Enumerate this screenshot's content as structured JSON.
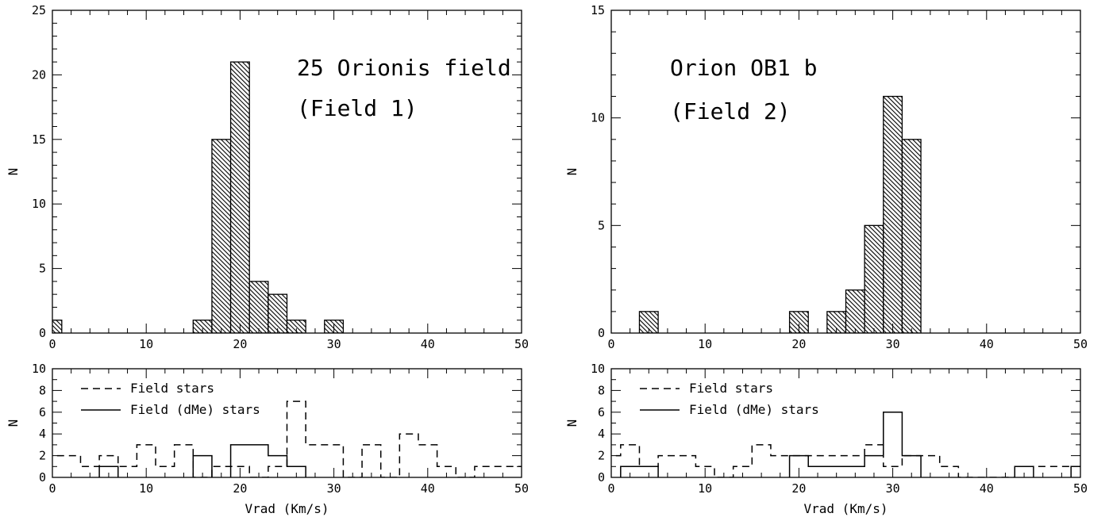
{
  "chart_data": [
    {
      "id": "top-left",
      "type": "bar",
      "bin_width": 2,
      "xlim": [
        0,
        50
      ],
      "ylim": [
        0,
        25
      ],
      "x_ticks": [
        0,
        10,
        20,
        30,
        40,
        50
      ],
      "y_ticks": [
        0,
        5,
        10,
        15,
        20,
        25
      ],
      "xlabel": "",
      "ylabel": "N",
      "annotations": [
        "25 Orionis field",
        "(Field 1)"
      ],
      "bins": [
        {
          "x": -1,
          "value": 1
        },
        {
          "x": 15,
          "value": 1
        },
        {
          "x": 17,
          "value": 15
        },
        {
          "x": 19,
          "value": 21
        },
        {
          "x": 21,
          "value": 4
        },
        {
          "x": 23,
          "value": 3
        },
        {
          "x": 25,
          "value": 1
        },
        {
          "x": 29,
          "value": 1
        }
      ]
    },
    {
      "id": "top-right",
      "type": "bar",
      "bin_width": 2,
      "xlim": [
        0,
        50
      ],
      "ylim": [
        0,
        15
      ],
      "x_ticks": [
        0,
        10,
        20,
        30,
        40,
        50
      ],
      "y_ticks": [
        0,
        5,
        10,
        15
      ],
      "xlabel": "",
      "ylabel": "N",
      "annotations": [
        "Orion OB1 b",
        "(Field 2)"
      ],
      "bins": [
        {
          "x": 3,
          "value": 1
        },
        {
          "x": 19,
          "value": 1
        },
        {
          "x": 23,
          "value": 1
        },
        {
          "x": 25,
          "value": 2
        },
        {
          "x": 27,
          "value": 5
        },
        {
          "x": 29,
          "value": 11
        },
        {
          "x": 31,
          "value": 9
        }
      ]
    },
    {
      "id": "bottom-left",
      "type": "line",
      "step": true,
      "bin_width": 2,
      "xlim": [
        0,
        50
      ],
      "ylim": [
        0,
        10
      ],
      "x_ticks": [
        0,
        10,
        20,
        30,
        40,
        50
      ],
      "y_ticks": [
        0,
        2,
        4,
        6,
        8,
        10
      ],
      "xlabel": "Vrad (Km/s)",
      "ylabel": "N",
      "series": [
        {
          "name": "Field stars",
          "style": "dashed",
          "bins": [
            {
              "x": -1,
              "value": 2
            },
            {
              "x": 1,
              "value": 2
            },
            {
              "x": 3,
              "value": 1
            },
            {
              "x": 5,
              "value": 2
            },
            {
              "x": 7,
              "value": 1
            },
            {
              "x": 9,
              "value": 3
            },
            {
              "x": 11,
              "value": 1
            },
            {
              "x": 13,
              "value": 3
            },
            {
              "x": 15,
              "value": 0
            },
            {
              "x": 17,
              "value": 1
            },
            {
              "x": 19,
              "value": 1
            },
            {
              "x": 21,
              "value": 0
            },
            {
              "x": 23,
              "value": 1
            },
            {
              "x": 25,
              "value": 7
            },
            {
              "x": 27,
              "value": 3
            },
            {
              "x": 29,
              "value": 3
            },
            {
              "x": 31,
              "value": 0
            },
            {
              "x": 33,
              "value": 3
            },
            {
              "x": 35,
              "value": 0
            },
            {
              "x": 37,
              "value": 4
            },
            {
              "x": 39,
              "value": 3
            },
            {
              "x": 41,
              "value": 1
            },
            {
              "x": 43,
              "value": 0
            },
            {
              "x": 45,
              "value": 1
            },
            {
              "x": 47,
              "value": 1
            },
            {
              "x": 49,
              "value": 1
            }
          ]
        },
        {
          "name": "Field (dMe) stars",
          "style": "solid",
          "bins": [
            {
              "x": 5,
              "value": 1
            },
            {
              "x": 15,
              "value": 2
            },
            {
              "x": 19,
              "value": 3
            },
            {
              "x": 21,
              "value": 3
            },
            {
              "x": 23,
              "value": 2
            },
            {
              "x": 25,
              "value": 1
            }
          ]
        }
      ]
    },
    {
      "id": "bottom-right",
      "type": "line",
      "step": true,
      "bin_width": 2,
      "xlim": [
        0,
        50
      ],
      "ylim": [
        0,
        10
      ],
      "x_ticks": [
        0,
        10,
        20,
        30,
        40,
        50
      ],
      "y_ticks": [
        0,
        2,
        4,
        6,
        8,
        10
      ],
      "xlabel": "Vrad (Km/s)",
      "ylabel": "N",
      "series": [
        {
          "name": "Field stars",
          "style": "dashed",
          "bins": [
            {
              "x": -1,
              "value": 2
            },
            {
              "x": 1,
              "value": 3
            },
            {
              "x": 3,
              "value": 1
            },
            {
              "x": 5,
              "value": 2
            },
            {
              "x": 7,
              "value": 2
            },
            {
              "x": 9,
              "value": 1
            },
            {
              "x": 11,
              "value": 0
            },
            {
              "x": 13,
              "value": 1
            },
            {
              "x": 15,
              "value": 3
            },
            {
              "x": 17,
              "value": 2
            },
            {
              "x": 19,
              "value": 2
            },
            {
              "x": 21,
              "value": 2
            },
            {
              "x": 23,
              "value": 2
            },
            {
              "x": 25,
              "value": 2
            },
            {
              "x": 27,
              "value": 3
            },
            {
              "x": 29,
              "value": 1
            },
            {
              "x": 31,
              "value": 2
            },
            {
              "x": 33,
              "value": 2
            },
            {
              "x": 35,
              "value": 1
            },
            {
              "x": 37,
              "value": 0
            },
            {
              "x": 39,
              "value": 0
            },
            {
              "x": 41,
              "value": 0
            },
            {
              "x": 43,
              "value": 1
            },
            {
              "x": 45,
              "value": 1
            },
            {
              "x": 47,
              "value": 1
            },
            {
              "x": 49,
              "value": 1
            }
          ]
        },
        {
          "name": "Field (dMe) stars",
          "style": "solid",
          "bins": [
            {
              "x": 1,
              "value": 1
            },
            {
              "x": 3,
              "value": 1
            },
            {
              "x": 19,
              "value": 2
            },
            {
              "x": 21,
              "value": 1
            },
            {
              "x": 23,
              "value": 1
            },
            {
              "x": 25,
              "value": 1
            },
            {
              "x": 27,
              "value": 2
            },
            {
              "x": 29,
              "value": 6
            },
            {
              "x": 31,
              "value": 2
            },
            {
              "x": 43,
              "value": 1
            },
            {
              "x": 49,
              "value": 1
            }
          ]
        }
      ]
    }
  ]
}
